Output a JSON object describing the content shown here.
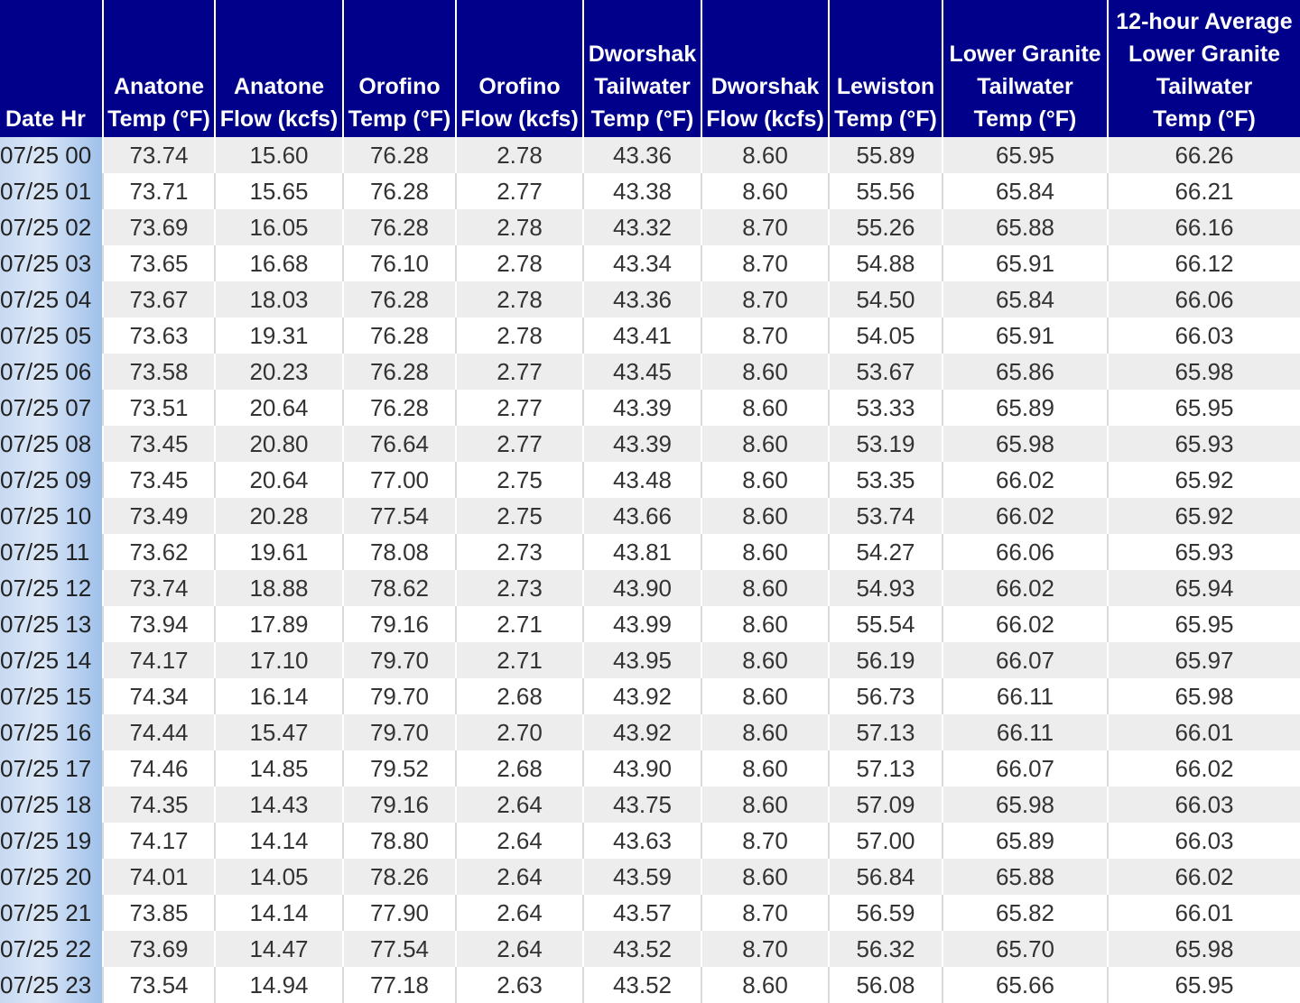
{
  "table": {
    "headers": [
      "Date Hr",
      "Anatone\nTemp (°F)",
      "Anatone\nFlow (kcfs)",
      "Orofino\nTemp (°F)",
      "Orofino\nFlow (kcfs)",
      "Dworshak\nTailwater\nTemp (°F)",
      "Dworshak\nFlow (kcfs)",
      "Lewiston\nTemp (°F)",
      "Lower Granite\nTailwater\nTemp (°F)",
      "12-hour Average\nLower Granite\nTailwater\nTemp (°F)"
    ],
    "rows": [
      [
        "07/25 00",
        "73.74",
        "15.60",
        "76.28",
        "2.78",
        "43.36",
        "8.60",
        "55.89",
        "65.95",
        "66.26"
      ],
      [
        "07/25 01",
        "73.71",
        "15.65",
        "76.28",
        "2.77",
        "43.38",
        "8.60",
        "55.56",
        "65.84",
        "66.21"
      ],
      [
        "07/25 02",
        "73.69",
        "16.05",
        "76.28",
        "2.78",
        "43.32",
        "8.70",
        "55.26",
        "65.88",
        "66.16"
      ],
      [
        "07/25 03",
        "73.65",
        "16.68",
        "76.10",
        "2.78",
        "43.34",
        "8.70",
        "54.88",
        "65.91",
        "66.12"
      ],
      [
        "07/25 04",
        "73.67",
        "18.03",
        "76.28",
        "2.78",
        "43.36",
        "8.70",
        "54.50",
        "65.84",
        "66.06"
      ],
      [
        "07/25 05",
        "73.63",
        "19.31",
        "76.28",
        "2.78",
        "43.41",
        "8.70",
        "54.05",
        "65.91",
        "66.03"
      ],
      [
        "07/25 06",
        "73.58",
        "20.23",
        "76.28",
        "2.77",
        "43.45",
        "8.60",
        "53.67",
        "65.86",
        "65.98"
      ],
      [
        "07/25 07",
        "73.51",
        "20.64",
        "76.28",
        "2.77",
        "43.39",
        "8.60",
        "53.33",
        "65.89",
        "65.95"
      ],
      [
        "07/25 08",
        "73.45",
        "20.80",
        "76.64",
        "2.77",
        "43.39",
        "8.60",
        "53.19",
        "65.98",
        "65.93"
      ],
      [
        "07/25 09",
        "73.45",
        "20.64",
        "77.00",
        "2.75",
        "43.48",
        "8.60",
        "53.35",
        "66.02",
        "65.92"
      ],
      [
        "07/25 10",
        "73.49",
        "20.28",
        "77.54",
        "2.75",
        "43.66",
        "8.60",
        "53.74",
        "66.02",
        "65.92"
      ],
      [
        "07/25 11",
        "73.62",
        "19.61",
        "78.08",
        "2.73",
        "43.81",
        "8.60",
        "54.27",
        "66.06",
        "65.93"
      ],
      [
        "07/25 12",
        "73.74",
        "18.88",
        "78.62",
        "2.73",
        "43.90",
        "8.60",
        "54.93",
        "66.02",
        "65.94"
      ],
      [
        "07/25 13",
        "73.94",
        "17.89",
        "79.16",
        "2.71",
        "43.99",
        "8.60",
        "55.54",
        "66.02",
        "65.95"
      ],
      [
        "07/25 14",
        "74.17",
        "17.10",
        "79.70",
        "2.71",
        "43.95",
        "8.60",
        "56.19",
        "66.07",
        "65.97"
      ],
      [
        "07/25 15",
        "74.34",
        "16.14",
        "79.70",
        "2.68",
        "43.92",
        "8.60",
        "56.73",
        "66.11",
        "65.98"
      ],
      [
        "07/25 16",
        "74.44",
        "15.47",
        "79.70",
        "2.70",
        "43.92",
        "8.60",
        "57.13",
        "66.11",
        "66.01"
      ],
      [
        "07/25 17",
        "74.46",
        "14.85",
        "79.52",
        "2.68",
        "43.90",
        "8.60",
        "57.13",
        "66.07",
        "66.02"
      ],
      [
        "07/25 18",
        "74.35",
        "14.43",
        "79.16",
        "2.64",
        "43.75",
        "8.60",
        "57.09",
        "65.98",
        "66.03"
      ],
      [
        "07/25 19",
        "74.17",
        "14.14",
        "78.80",
        "2.64",
        "43.63",
        "8.70",
        "57.00",
        "65.89",
        "66.03"
      ],
      [
        "07/25 20",
        "74.01",
        "14.05",
        "78.26",
        "2.64",
        "43.59",
        "8.60",
        "56.84",
        "65.88",
        "66.02"
      ],
      [
        "07/25 21",
        "73.85",
        "14.14",
        "77.90",
        "2.64",
        "43.57",
        "8.70",
        "56.59",
        "65.82",
        "66.01"
      ],
      [
        "07/25 22",
        "73.69",
        "14.47",
        "77.54",
        "2.64",
        "43.52",
        "8.70",
        "56.32",
        "65.70",
        "65.98"
      ],
      [
        "07/25 23",
        "73.54",
        "14.94",
        "77.18",
        "2.63",
        "43.52",
        "8.60",
        "56.08",
        "65.66",
        "65.95"
      ]
    ]
  }
}
